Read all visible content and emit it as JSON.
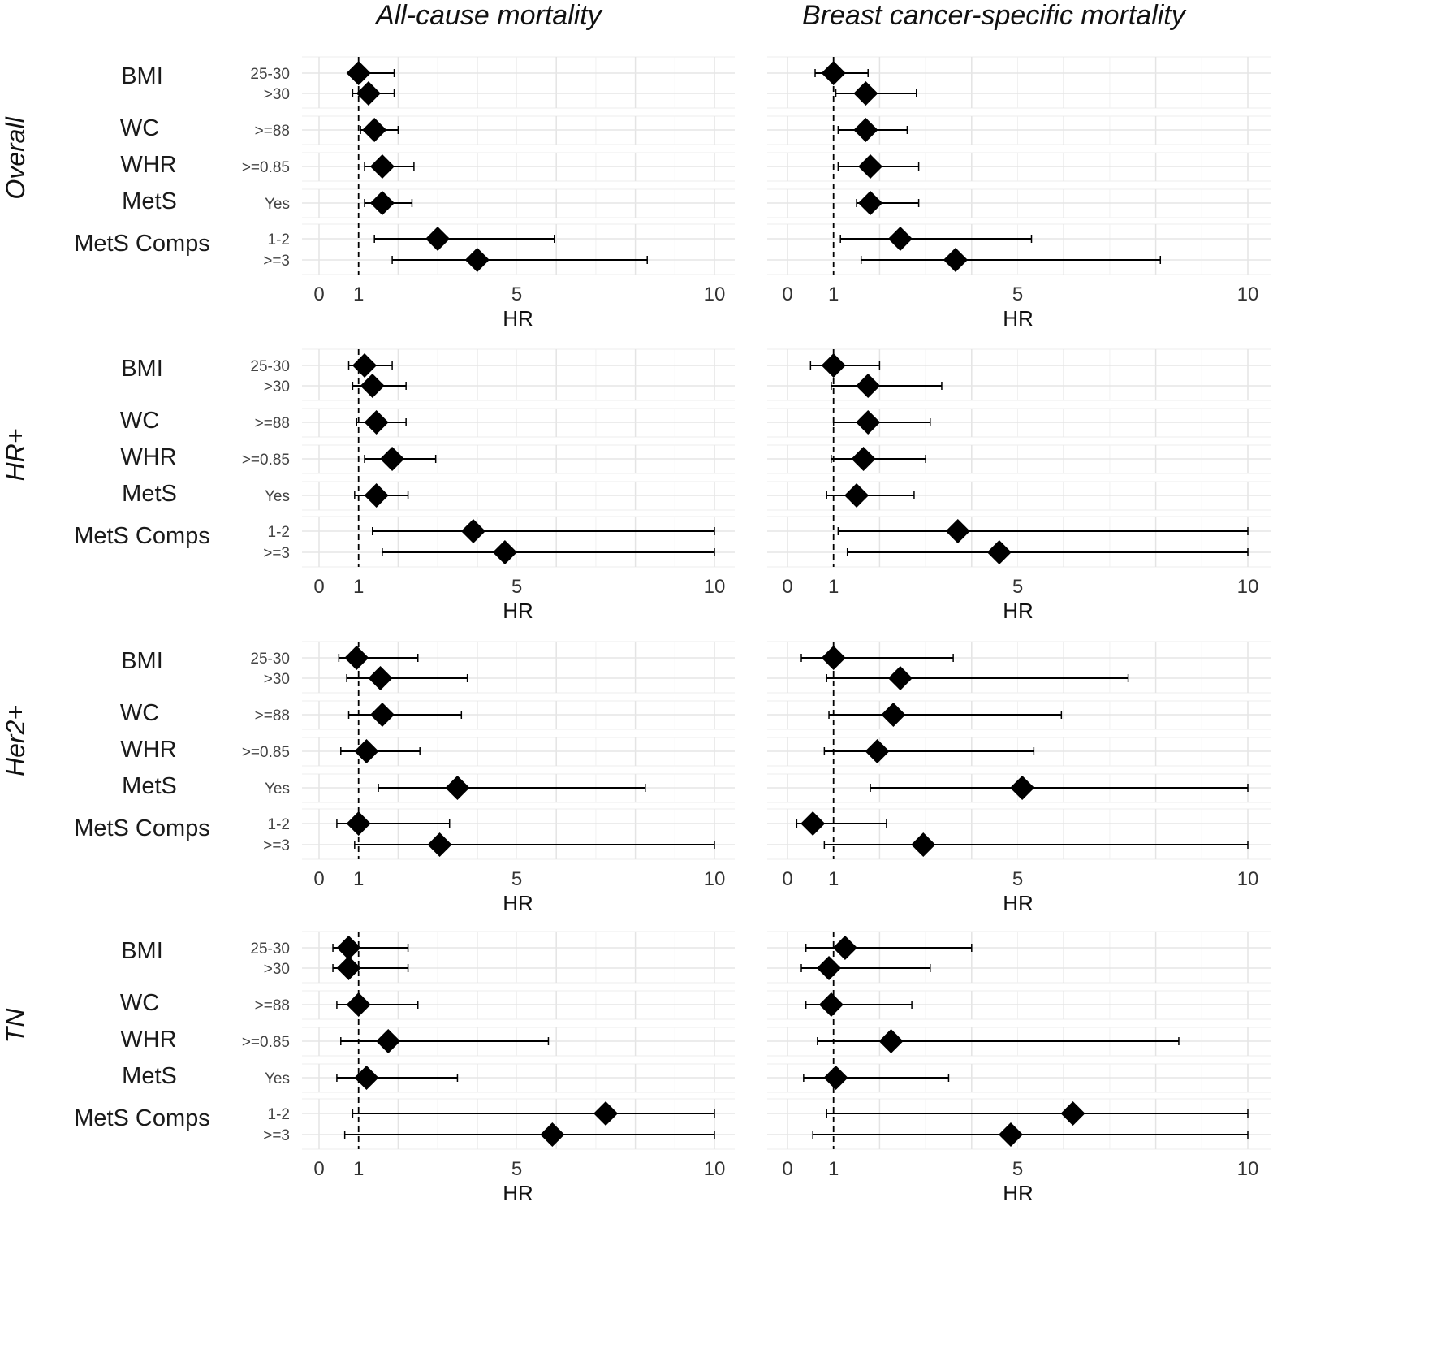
{
  "chart_data": {
    "type": "forest",
    "column_titles": [
      "All-cause mortality",
      "Breast cancer-specific mortality"
    ],
    "xlabel": "HR",
    "x_ticks": [
      0,
      1,
      5,
      10
    ],
    "reference_line": 1,
    "row_labels": [
      "25-30",
      ">30",
      ">=88",
      ">=0.85",
      "Yes",
      "1-2",
      ">=3"
    ],
    "group_labels": [
      "BMI",
      "WC",
      "WHR",
      "MetS",
      "MetS Comps"
    ],
    "panels": [
      {
        "subgroup": "Overall",
        "all_cause": [
          {
            "hr": 1.0,
            "lo": 0.8,
            "hi": 1.9
          },
          {
            "hr": 1.25,
            "lo": 0.85,
            "hi": 1.9
          },
          {
            "hr": 1.4,
            "lo": 1.05,
            "hi": 2.0
          },
          {
            "hr": 1.6,
            "lo": 1.15,
            "hi": 2.4
          },
          {
            "hr": 1.6,
            "lo": 1.15,
            "hi": 2.35
          },
          {
            "hr": 3.0,
            "lo": 1.4,
            "hi": 5.95
          },
          {
            "hr": 4.0,
            "lo": 1.85,
            "hi": 8.3
          }
        ],
        "cancer_specific": [
          {
            "hr": 1.0,
            "lo": 0.6,
            "hi": 1.75
          },
          {
            "hr": 1.7,
            "lo": 1.05,
            "hi": 2.8
          },
          {
            "hr": 1.7,
            "lo": 1.1,
            "hi": 2.6
          },
          {
            "hr": 1.8,
            "lo": 1.1,
            "hi": 2.85
          },
          {
            "hr": 1.8,
            "lo": 1.5,
            "hi": 2.85
          },
          {
            "hr": 2.45,
            "lo": 1.15,
            "hi": 5.3
          },
          {
            "hr": 3.65,
            "lo": 1.6,
            "hi": 8.1
          }
        ]
      },
      {
        "subgroup": "HR+",
        "all_cause": [
          {
            "hr": 1.15,
            "lo": 0.75,
            "hi": 1.85
          },
          {
            "hr": 1.35,
            "lo": 0.85,
            "hi": 2.2
          },
          {
            "hr": 1.45,
            "lo": 0.95,
            "hi": 2.2
          },
          {
            "hr": 1.85,
            "lo": 1.15,
            "hi": 2.95
          },
          {
            "hr": 1.45,
            "lo": 0.9,
            "hi": 2.25
          },
          {
            "hr": 3.9,
            "lo": 1.35,
            "hi": 10.0
          },
          {
            "hr": 4.7,
            "lo": 1.6,
            "hi": 10.0
          }
        ],
        "cancer_specific": [
          {
            "hr": 1.0,
            "lo": 0.5,
            "hi": 2.0
          },
          {
            "hr": 1.75,
            "lo": 0.95,
            "hi": 3.35
          },
          {
            "hr": 1.75,
            "lo": 1.0,
            "hi": 3.1
          },
          {
            "hr": 1.65,
            "lo": 0.95,
            "hi": 3.0
          },
          {
            "hr": 1.5,
            "lo": 0.85,
            "hi": 2.75
          },
          {
            "hr": 3.7,
            "lo": 1.1,
            "hi": 10.0
          },
          {
            "hr": 4.6,
            "lo": 1.3,
            "hi": 10.0
          }
        ]
      },
      {
        "subgroup": "Her2+",
        "all_cause": [
          {
            "hr": 0.95,
            "lo": 0.5,
            "hi": 2.5
          },
          {
            "hr": 1.55,
            "lo": 0.7,
            "hi": 3.75
          },
          {
            "hr": 1.6,
            "lo": 0.75,
            "hi": 3.6
          },
          {
            "hr": 1.2,
            "lo": 0.55,
            "hi": 2.55
          },
          {
            "hr": 3.5,
            "lo": 1.5,
            "hi": 8.25
          },
          {
            "hr": 1.0,
            "lo": 0.45,
            "hi": 3.3
          },
          {
            "hr": 3.05,
            "lo": 0.9,
            "hi": 10.0
          }
        ],
        "cancer_specific": [
          {
            "hr": 1.0,
            "lo": 0.3,
            "hi": 3.6
          },
          {
            "hr": 2.45,
            "lo": 0.85,
            "hi": 7.4
          },
          {
            "hr": 2.3,
            "lo": 0.9,
            "hi": 5.95
          },
          {
            "hr": 1.95,
            "lo": 0.8,
            "hi": 5.35
          },
          {
            "hr": 5.1,
            "lo": 1.8,
            "hi": 10.0
          },
          {
            "hr": 0.55,
            "lo": 0.2,
            "hi": 2.15
          },
          {
            "hr": 2.95,
            "lo": 0.8,
            "hi": 10.0
          }
        ]
      },
      {
        "subgroup": "TN",
        "all_cause": [
          {
            "hr": 0.75,
            "lo": 0.35,
            "hi": 2.25
          },
          {
            "hr": 0.75,
            "lo": 0.35,
            "hi": 2.25
          },
          {
            "hr": 1.0,
            "lo": 0.45,
            "hi": 2.5
          },
          {
            "hr": 1.75,
            "lo": 0.55,
            "hi": 5.8
          },
          {
            "hr": 1.2,
            "lo": 0.45,
            "hi": 3.5
          },
          {
            "hr": 7.25,
            "lo": 0.85,
            "hi": 10.0
          },
          {
            "hr": 5.9,
            "lo": 0.65,
            "hi": 10.0
          }
        ],
        "cancer_specific": [
          {
            "hr": 1.25,
            "lo": 0.4,
            "hi": 4.0
          },
          {
            "hr": 0.9,
            "lo": 0.3,
            "hi": 3.1
          },
          {
            "hr": 0.95,
            "lo": 0.4,
            "hi": 2.7
          },
          {
            "hr": 2.25,
            "lo": 0.65,
            "hi": 8.5
          },
          {
            "hr": 1.05,
            "lo": 0.35,
            "hi": 3.5
          },
          {
            "hr": 6.2,
            "lo": 0.85,
            "hi": 10.0
          },
          {
            "hr": 4.85,
            "lo": 0.55,
            "hi": 10.0
          }
        ]
      }
    ]
  }
}
